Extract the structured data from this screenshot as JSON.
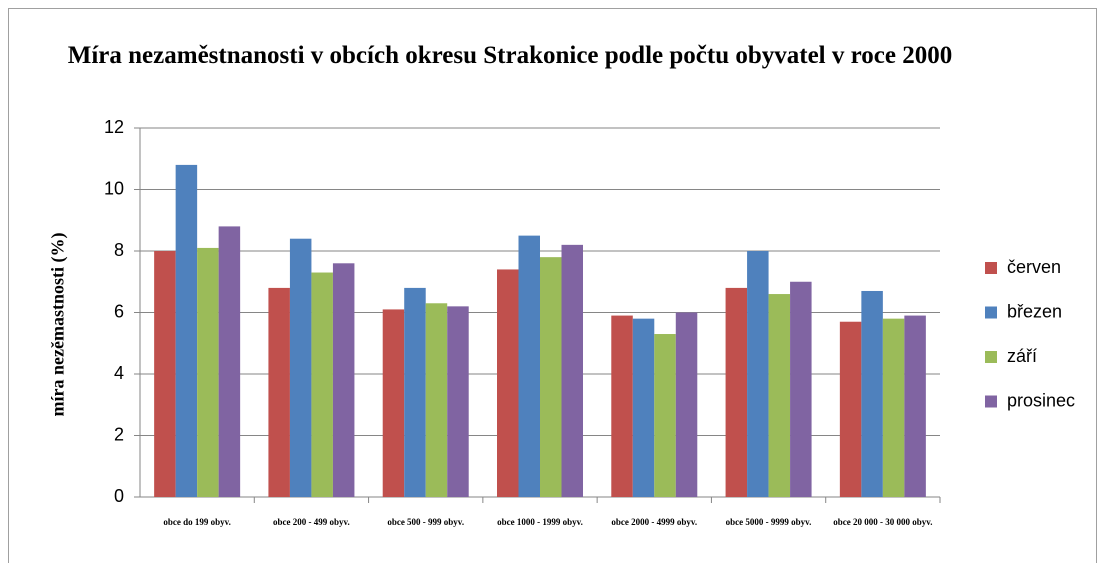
{
  "chart_data": {
    "type": "bar",
    "title": "Míra nezaměstnanosti  v obcích okresu Strakonice podle počtu obyvatel v roce 2000",
    "y_label": "míra nezěmastnosti (%)",
    "categories": [
      "obce do 199  obyv.",
      "obce  200 - 499 obyv.",
      "obce 500 - 999  obyv.",
      "obce  1000 - 1999 obyv.",
      "obce 2000 - 4999 obyv.",
      "obce 5000 - 9999 obyv.",
      "obce 20 000 - 30 000 obyv."
    ],
    "series": [
      {
        "name": "červen",
        "color": "#c0504d",
        "values": [
          8.0,
          6.8,
          6.1,
          7.4,
          5.9,
          6.8,
          5.7
        ]
      },
      {
        "name": "březen",
        "color": "#4f81bd",
        "values": [
          10.8,
          8.4,
          6.8,
          8.5,
          5.8,
          8.0,
          6.7
        ]
      },
      {
        "name": "září",
        "color": "#9bbb59",
        "values": [
          8.1,
          7.3,
          6.3,
          7.8,
          5.3,
          6.6,
          5.8
        ]
      },
      {
        "name": "prosinec",
        "color": "#8064a2",
        "values": [
          8.8,
          7.6,
          6.2,
          8.2,
          6.0,
          7.0,
          5.9
        ]
      }
    ],
    "ylim": [
      0,
      12
    ],
    "yticks": [
      0,
      2,
      4,
      6,
      8,
      10,
      12
    ],
    "grid": true,
    "legend": "right"
  }
}
